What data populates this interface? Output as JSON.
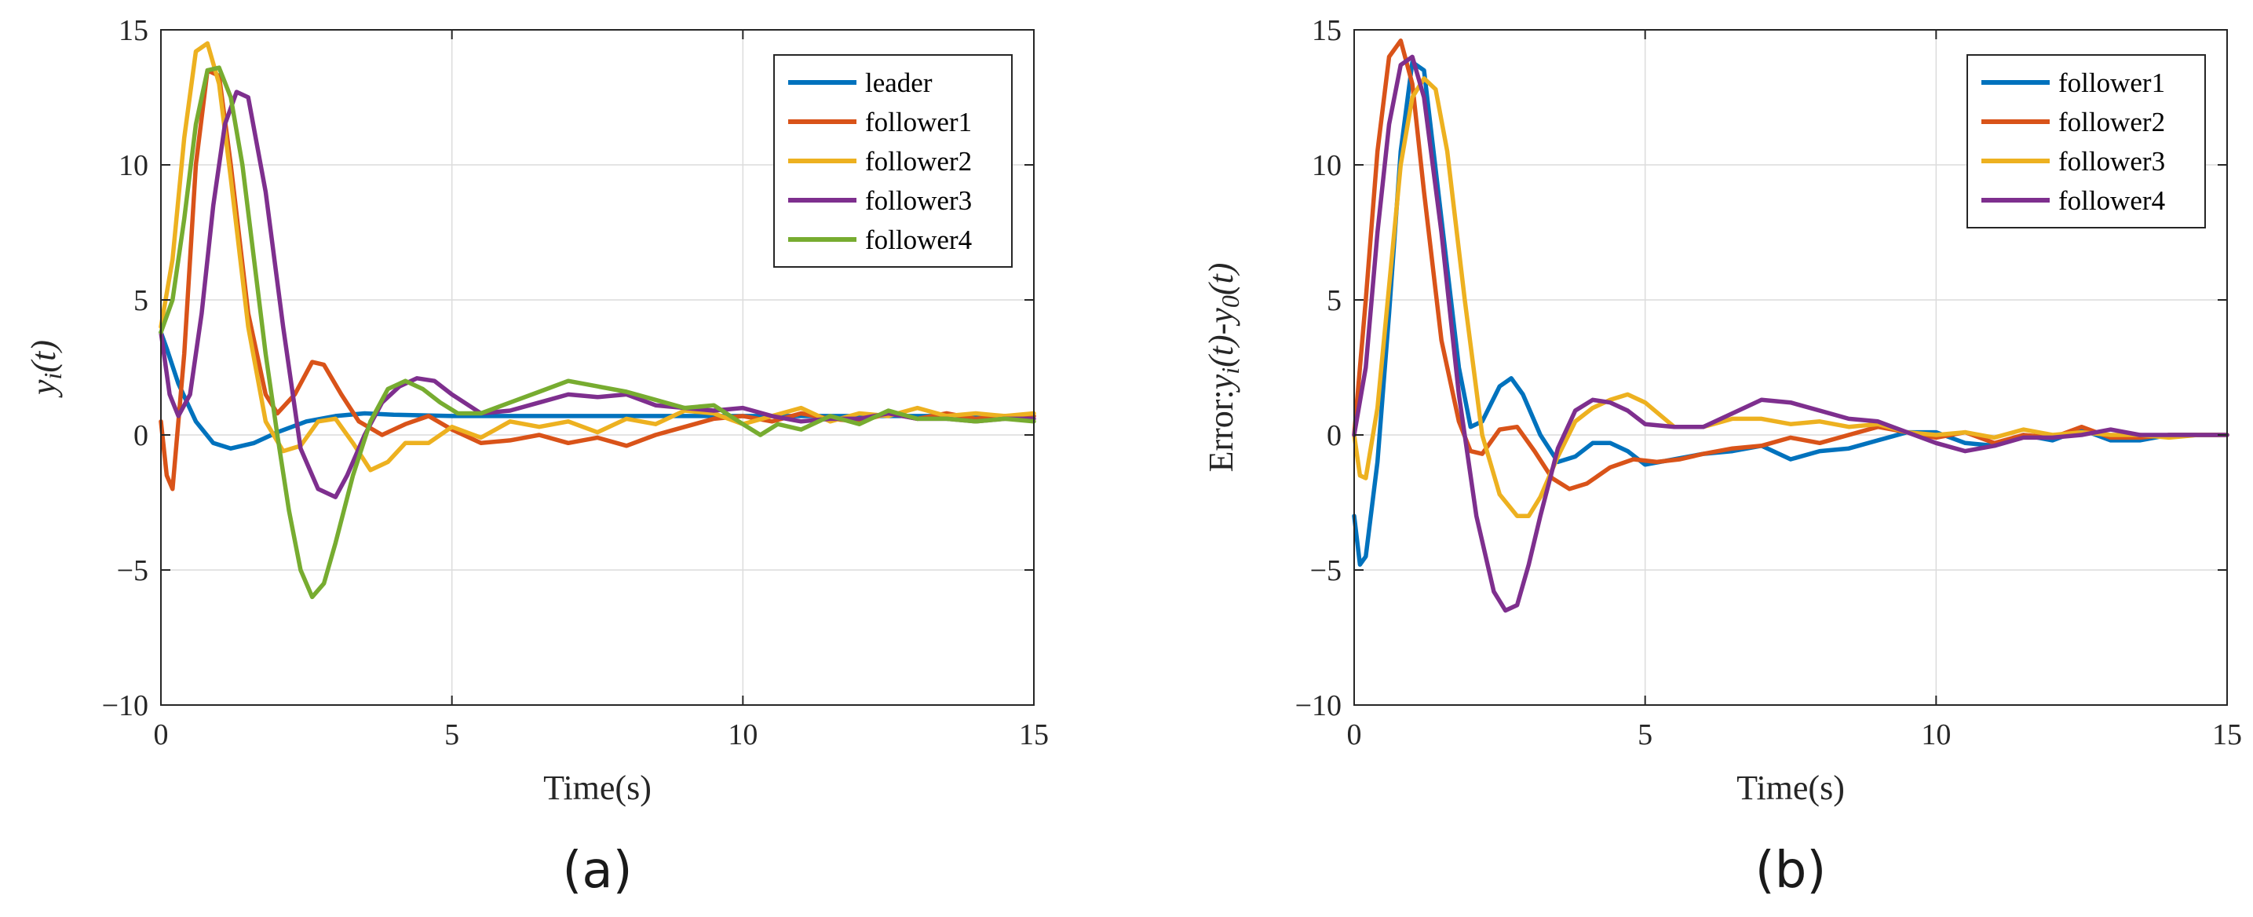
{
  "chart_data": [
    {
      "type": "line",
      "panel_label": "(a)",
      "xlabel": "Time(s)",
      "ylabel": "y_i(t)",
      "ylabel_main": "y",
      "ylabel_sub": "i",
      "ylabel_tail": "(t)",
      "xlim": [
        0,
        15
      ],
      "ylim": [
        -10,
        15
      ],
      "xticks": [
        0,
        5,
        10,
        15
      ],
      "yticks": [
        -10,
        -5,
        0,
        5,
        10,
        15
      ],
      "xtick_labels": [
        "0",
        "5",
        "10",
        "15"
      ],
      "ytick_labels": [
        "−10",
        "−5",
        "0",
        "5",
        "10",
        "15"
      ],
      "grid": true,
      "legend_position": "top-right",
      "series": [
        {
          "name": "leader",
          "color": "#0072BD",
          "x": [
            0,
            0.1,
            0.3,
            0.6,
            0.9,
            1.2,
            1.6,
            2.0,
            2.5,
            3.0,
            3.5,
            4.0,
            5.0,
            6.0,
            8.0,
            10.0,
            12.0,
            15.0
          ],
          "y": [
            3.8,
            3.2,
            1.9,
            0.5,
            -0.3,
            -0.5,
            -0.3,
            0.1,
            0.5,
            0.7,
            0.8,
            0.75,
            0.7,
            0.7,
            0.7,
            0.7,
            0.7,
            0.7
          ]
        },
        {
          "name": "follower1",
          "color": "#D95319",
          "x": [
            0,
            0.1,
            0.2,
            0.4,
            0.6,
            0.8,
            1.0,
            1.2,
            1.5,
            1.8,
            2.0,
            2.3,
            2.6,
            2.8,
            3.1,
            3.4,
            3.8,
            4.2,
            4.6,
            5.0,
            5.5,
            6.0,
            6.5,
            7.0,
            7.5,
            8.0,
            8.5,
            9.0,
            9.5,
            10.0,
            10.5,
            11.0,
            11.5,
            12.0,
            12.5,
            13.0,
            13.5,
            14.0,
            14.5,
            15.0
          ],
          "y": [
            0.5,
            -1.5,
            -2.0,
            3.0,
            10.0,
            13.5,
            13.3,
            10.0,
            4.5,
            1.5,
            0.8,
            1.5,
            2.7,
            2.6,
            1.5,
            0.5,
            0.0,
            0.4,
            0.7,
            0.2,
            -0.3,
            -0.2,
            0.0,
            -0.3,
            -0.1,
            -0.4,
            0.0,
            0.3,
            0.6,
            0.7,
            0.5,
            0.8,
            0.6,
            0.5,
            0.8,
            0.6,
            0.8,
            0.6,
            0.7,
            0.7
          ]
        },
        {
          "name": "follower2",
          "color": "#EDB120",
          "x": [
            0,
            0.2,
            0.4,
            0.6,
            0.8,
            1.0,
            1.2,
            1.5,
            1.8,
            2.1,
            2.4,
            2.7,
            3.0,
            3.3,
            3.6,
            3.9,
            4.2,
            4.6,
            5.0,
            5.5,
            6.0,
            6.5,
            7.0,
            7.5,
            8.0,
            8.5,
            9.0,
            9.5,
            10.0,
            10.5,
            11.0,
            11.5,
            12.0,
            12.5,
            13.0,
            13.5,
            14.0,
            14.5,
            15.0
          ],
          "y": [
            4.0,
            6.5,
            11.0,
            14.2,
            14.5,
            13.0,
            9.5,
            4.0,
            0.5,
            -0.6,
            -0.4,
            0.5,
            0.6,
            -0.3,
            -1.3,
            -1.0,
            -0.3,
            -0.3,
            0.3,
            -0.1,
            0.5,
            0.3,
            0.5,
            0.1,
            0.6,
            0.4,
            0.9,
            0.8,
            0.4,
            0.7,
            1.0,
            0.5,
            0.8,
            0.7,
            1.0,
            0.7,
            0.8,
            0.7,
            0.8
          ]
        },
        {
          "name": "follower3",
          "color": "#7E2F8E",
          "x": [
            0,
            0.15,
            0.3,
            0.5,
            0.7,
            0.9,
            1.1,
            1.3,
            1.5,
            1.8,
            2.1,
            2.4,
            2.7,
            3.0,
            3.2,
            3.5,
            3.8,
            4.1,
            4.4,
            4.7,
            5.0,
            5.5,
            6.0,
            6.5,
            7.0,
            7.5,
            8.0,
            8.5,
            9.0,
            9.5,
            10.0,
            10.5,
            11.0,
            11.5,
            12.0,
            12.5,
            13.0,
            13.5,
            14.0,
            14.5,
            15.0
          ],
          "y": [
            3.8,
            1.5,
            0.7,
            1.5,
            4.5,
            8.5,
            11.5,
            12.7,
            12.5,
            9.0,
            4.0,
            -0.5,
            -2.0,
            -2.3,
            -1.5,
            0.0,
            1.2,
            1.8,
            2.1,
            2.0,
            1.5,
            0.8,
            0.9,
            1.2,
            1.5,
            1.4,
            1.5,
            1.1,
            1.0,
            0.9,
            1.0,
            0.7,
            0.5,
            0.6,
            0.6,
            0.8,
            0.6,
            0.6,
            0.5,
            0.6,
            0.6
          ]
        },
        {
          "name": "follower4",
          "color": "#77AC30",
          "x": [
            0,
            0.2,
            0.4,
            0.6,
            0.8,
            1.0,
            1.2,
            1.4,
            1.6,
            1.8,
            2.0,
            2.2,
            2.4,
            2.6,
            2.8,
            3.0,
            3.3,
            3.6,
            3.9,
            4.2,
            4.5,
            4.8,
            5.1,
            5.5,
            6.0,
            6.5,
            7.0,
            7.5,
            8.0,
            8.5,
            9.0,
            9.5,
            10.0,
            10.3,
            10.6,
            11.0,
            11.5,
            12.0,
            12.5,
            13.0,
            13.5,
            14.0,
            14.5,
            15.0
          ],
          "y": [
            3.8,
            5.0,
            8.0,
            11.5,
            13.5,
            13.6,
            12.5,
            10.0,
            6.5,
            3.0,
            0.0,
            -2.8,
            -5.0,
            -6.0,
            -5.5,
            -4.0,
            -1.5,
            0.5,
            1.7,
            2.0,
            1.7,
            1.2,
            0.8,
            0.8,
            1.2,
            1.6,
            2.0,
            1.8,
            1.6,
            1.3,
            1.0,
            1.1,
            0.4,
            0.0,
            0.4,
            0.2,
            0.7,
            0.4,
            0.9,
            0.6,
            0.6,
            0.5,
            0.6,
            0.5
          ]
        }
      ]
    },
    {
      "type": "line",
      "panel_label": "(b)",
      "xlabel": "Time(s)",
      "ylabel": "Error:y_i(t)-y_0(t)",
      "ylabel_prefix": "Error:",
      "ylabel_main": "y",
      "ylabel_sub": "i",
      "ylabel_mid": "(t)-",
      "ylabel_main2": "y",
      "ylabel_sub2": "0",
      "ylabel_tail": "(t)",
      "xlim": [
        0,
        15
      ],
      "ylim": [
        -10,
        15
      ],
      "xticks": [
        0,
        5,
        10,
        15
      ],
      "yticks": [
        -10,
        -5,
        0,
        5,
        10,
        15
      ],
      "xtick_labels": [
        "0",
        "5",
        "10",
        "15"
      ],
      "ytick_labels": [
        "−10",
        "−5",
        "0",
        "5",
        "10",
        "15"
      ],
      "grid": true,
      "legend_position": "top-right",
      "series": [
        {
          "name": "follower1",
          "color": "#0072BD",
          "x": [
            0,
            0.1,
            0.2,
            0.4,
            0.6,
            0.8,
            1.0,
            1.2,
            1.5,
            1.8,
            2.0,
            2.2,
            2.5,
            2.7,
            2.9,
            3.2,
            3.5,
            3.8,
            4.1,
            4.4,
            4.7,
            5.0,
            5.5,
            6.0,
            6.5,
            7.0,
            7.5,
            8.0,
            8.5,
            9.0,
            9.5,
            10.0,
            10.5,
            11.0,
            11.5,
            12.0,
            12.5,
            13.0,
            13.5,
            14.0,
            14.5,
            15.0
          ],
          "y": [
            -3.0,
            -4.8,
            -4.5,
            -1.0,
            4.5,
            10.5,
            13.8,
            13.5,
            8.0,
            2.5,
            0.3,
            0.5,
            1.8,
            2.1,
            1.5,
            0.0,
            -1.0,
            -0.8,
            -0.3,
            -0.3,
            -0.6,
            -1.1,
            -0.9,
            -0.7,
            -0.6,
            -0.4,
            -0.9,
            -0.6,
            -0.5,
            -0.2,
            0.1,
            0.1,
            -0.3,
            -0.4,
            0.0,
            -0.2,
            0.2,
            -0.2,
            -0.2,
            0.0,
            0.0,
            0.0
          ]
        },
        {
          "name": "follower2",
          "color": "#D95319",
          "x": [
            0,
            0.2,
            0.4,
            0.6,
            0.8,
            1.0,
            1.2,
            1.5,
            1.8,
            2.0,
            2.2,
            2.5,
            2.8,
            3.1,
            3.4,
            3.7,
            4.0,
            4.4,
            4.8,
            5.2,
            5.6,
            6.0,
            6.5,
            7.0,
            7.5,
            8.0,
            8.5,
            9.0,
            9.5,
            10.0,
            10.5,
            11.0,
            11.5,
            12.0,
            12.5,
            13.0,
            13.5,
            14.0,
            14.5,
            15.0
          ],
          "y": [
            0.0,
            5.0,
            10.5,
            14.0,
            14.6,
            13.0,
            9.0,
            3.5,
            0.5,
            -0.6,
            -0.7,
            0.2,
            0.3,
            -0.6,
            -1.6,
            -2.0,
            -1.8,
            -1.2,
            -0.9,
            -1.0,
            -0.9,
            -0.7,
            -0.5,
            -0.4,
            -0.1,
            -0.3,
            0.0,
            0.3,
            0.1,
            -0.1,
            0.1,
            -0.3,
            0.0,
            -0.1,
            0.3,
            -0.1,
            -0.1,
            0.0,
            0.0,
            0.0
          ]
        },
        {
          "name": "follower3",
          "color": "#EDB120",
          "x": [
            0,
            0.1,
            0.2,
            0.4,
            0.6,
            0.8,
            1.0,
            1.2,
            1.4,
            1.6,
            1.9,
            2.2,
            2.5,
            2.8,
            3.0,
            3.2,
            3.5,
            3.8,
            4.1,
            4.4,
            4.7,
            5.0,
            5.5,
            6.0,
            6.5,
            7.0,
            7.5,
            8.0,
            8.5,
            9.0,
            9.5,
            10.0,
            10.5,
            11.0,
            11.5,
            12.0,
            12.5,
            13.0,
            13.5,
            14.0,
            14.5,
            15.0
          ],
          "y": [
            0.0,
            -1.5,
            -1.6,
            1.0,
            5.5,
            10.0,
            12.5,
            13.2,
            12.8,
            10.5,
            5.0,
            0.0,
            -2.2,
            -3.0,
            -3.0,
            -2.3,
            -0.8,
            0.5,
            1.0,
            1.3,
            1.5,
            1.2,
            0.3,
            0.3,
            0.6,
            0.6,
            0.4,
            0.5,
            0.3,
            0.4,
            0.1,
            0.0,
            0.1,
            -0.1,
            0.2,
            0.0,
            0.1,
            0.0,
            0.0,
            -0.1,
            0.0,
            0.0
          ]
        },
        {
          "name": "follower4",
          "color": "#7E2F8E",
          "x": [
            0,
            0.2,
            0.4,
            0.6,
            0.8,
            1.0,
            1.2,
            1.5,
            1.8,
            2.1,
            2.4,
            2.6,
            2.8,
            3.0,
            3.2,
            3.5,
            3.8,
            4.1,
            4.4,
            4.7,
            5.0,
            5.5,
            6.0,
            6.5,
            7.0,
            7.5,
            8.0,
            8.5,
            9.0,
            9.5,
            10.0,
            10.5,
            11.0,
            11.5,
            12.0,
            12.5,
            13.0,
            13.5,
            14.0,
            14.5,
            15.0
          ],
          "y": [
            0.0,
            2.5,
            7.5,
            11.5,
            13.7,
            14.0,
            12.5,
            7.5,
            1.5,
            -3.0,
            -5.8,
            -6.5,
            -6.3,
            -4.8,
            -3.0,
            -0.5,
            0.9,
            1.3,
            1.2,
            0.9,
            0.4,
            0.3,
            0.3,
            0.8,
            1.3,
            1.2,
            0.9,
            0.6,
            0.5,
            0.1,
            -0.3,
            -0.6,
            -0.4,
            -0.1,
            -0.1,
            0.0,
            0.2,
            0.0,
            0.0,
            0.0,
            0.0
          ]
        }
      ]
    }
  ]
}
